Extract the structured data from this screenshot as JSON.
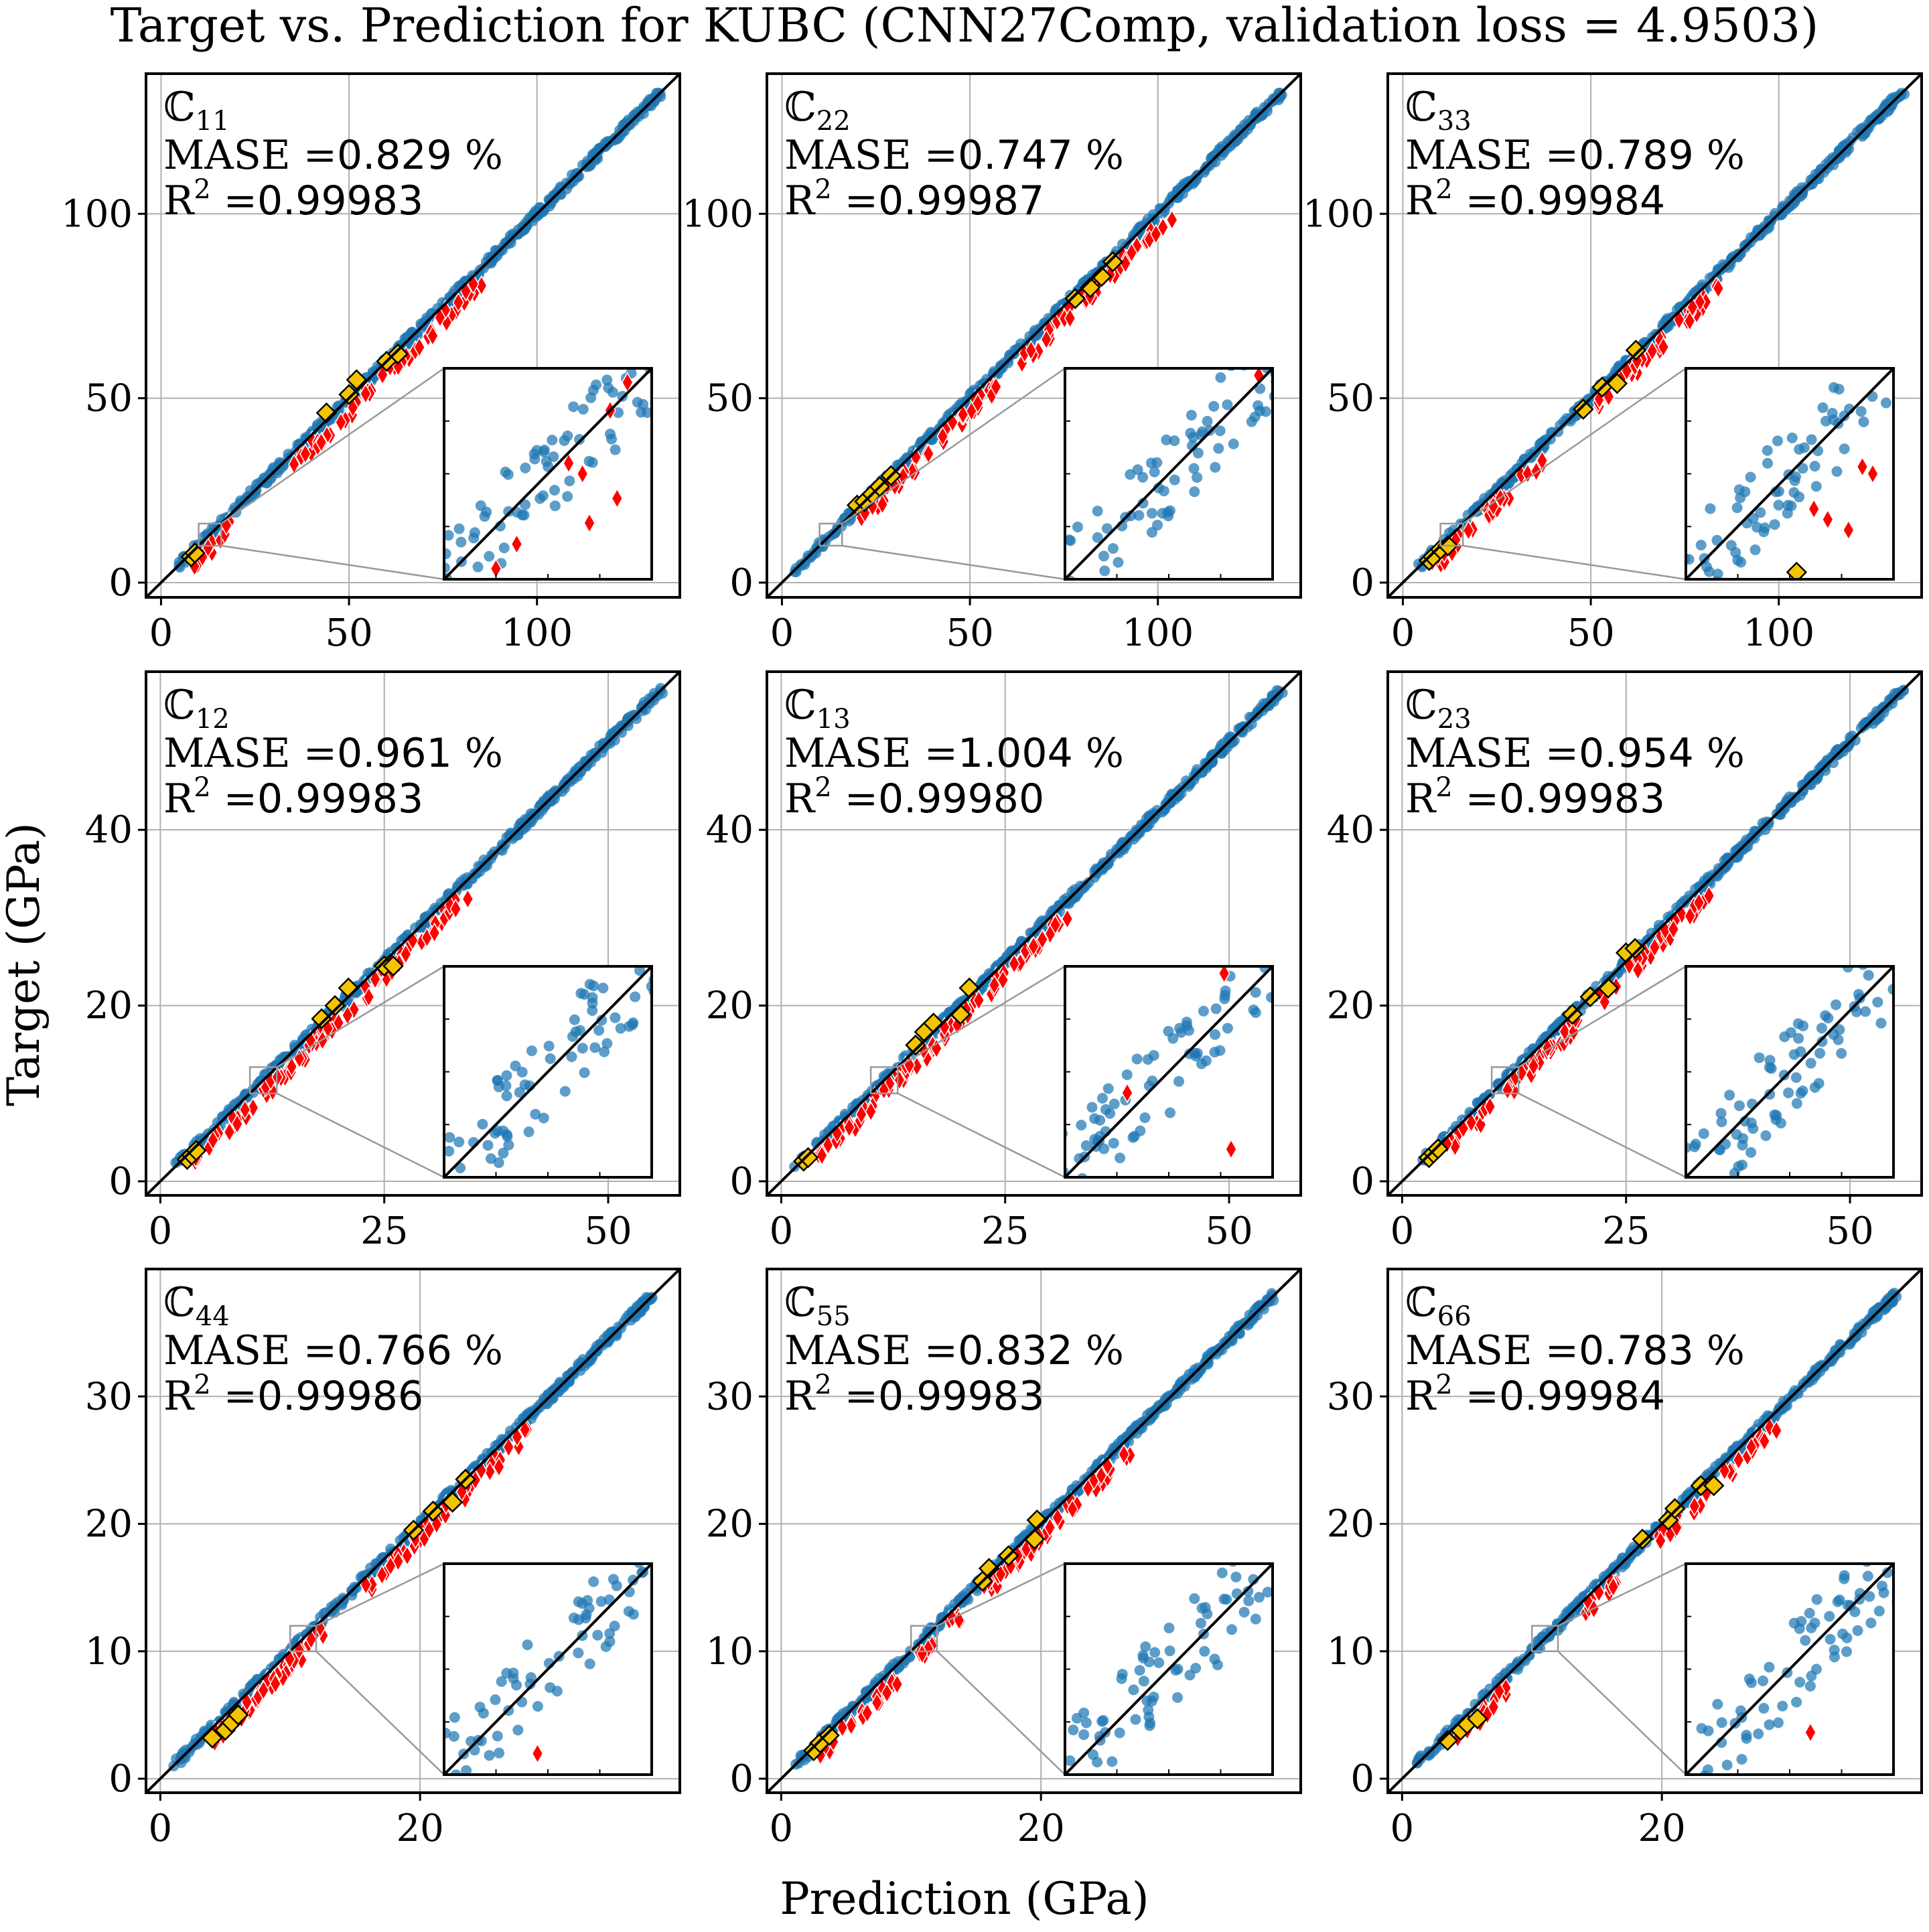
{
  "figure": {
    "title": "Target vs. Prediction for KUBC (CNN27Comp, validation loss = 4.9503)",
    "xlabel": "Prediction (GPa)",
    "ylabel": "Target (GPa)",
    "colors": {
      "scatter": "#1f77b4",
      "diamond_red": "#ff0000",
      "diamond_gold": "#f5c400",
      "diag": "#000000",
      "grid": "#b0b0b0"
    }
  },
  "chart_data": [
    {
      "type": "scatter",
      "component_label": "ℂ",
      "component_sub": "11",
      "mase_label": "MASE =",
      "mase_value": "0.829",
      "mase_unit": "%",
      "r2_label": "R",
      "r2_sup": "2",
      "r2_eq": " =",
      "r2_value": "0.99983",
      "xlim": [
        -4,
        138
      ],
      "ylim": [
        -4,
        138
      ],
      "xticks": [
        0,
        50,
        100
      ],
      "yticks": [
        0,
        50,
        100
      ],
      "range": [
        3,
        133
      ],
      "red_ranges": [
        [
          5,
          17
        ],
        [
          33,
          50
        ],
        [
          52,
          66
        ],
        [
          65,
          82
        ]
      ],
      "gold_points": [
        [
          8,
          7
        ],
        [
          9,
          8
        ],
        [
          44,
          46
        ],
        [
          50,
          51
        ],
        [
          52,
          55
        ],
        [
          60,
          60
        ],
        [
          63,
          62
        ]
      ],
      "zoom_box": [
        10,
        16,
        10,
        16
      ],
      "inset_red": [
        [
          13.6,
          13.3
        ],
        [
          14.0,
          13.0
        ],
        [
          15.0,
          12.3
        ],
        [
          14.2,
          11.6
        ],
        [
          14.8,
          14.8
        ],
        [
          15.3,
          15.6
        ],
        [
          11.5,
          10.3
        ],
        [
          12.1,
          11.0
        ]
      ],
      "inset_gold": []
    },
    {
      "type": "scatter",
      "component_label": "ℂ",
      "component_sub": "22",
      "mase_label": "MASE =",
      "mase_value": "0.747",
      "mase_unit": "%",
      "r2_label": "R",
      "r2_sup": "2",
      "r2_eq": " =",
      "r2_value": "0.99987",
      "xlim": [
        -4,
        138
      ],
      "ylim": [
        -4,
        138
      ],
      "xticks": [
        0,
        50,
        100
      ],
      "yticks": [
        0,
        50,
        100
      ],
      "range": [
        3,
        133
      ],
      "red_ranges": [
        [
          18,
          35
        ],
        [
          35,
          55
        ],
        [
          60,
          100
        ]
      ],
      "gold_points": [
        [
          20,
          21
        ],
        [
          22,
          22
        ],
        [
          24,
          24
        ],
        [
          26,
          26
        ],
        [
          29,
          29
        ],
        [
          78,
          77
        ],
        [
          82,
          80
        ],
        [
          85,
          83
        ],
        [
          88,
          87
        ]
      ],
      "zoom_box": [
        10,
        16,
        10,
        16
      ],
      "inset_red": [
        [
          15.6,
          15.8
        ]
      ],
      "inset_gold": []
    },
    {
      "type": "scatter",
      "component_label": "ℂ",
      "component_sub": "33",
      "mase_label": "MASE =",
      "mase_value": "0.789",
      "mase_unit": "%",
      "r2_label": "R",
      "r2_sup": "2",
      "r2_eq": " =",
      "r2_value": "0.99984",
      "xlim": [
        -4,
        138
      ],
      "ylim": [
        -4,
        138
      ],
      "xticks": [
        0,
        50,
        100
      ],
      "yticks": [
        0,
        50,
        100
      ],
      "range": [
        3,
        133
      ],
      "red_ranges": [
        [
          6,
          17
        ],
        [
          18,
          35
        ],
        [
          48,
          62
        ],
        [
          58,
          82
        ]
      ],
      "gold_points": [
        [
          7,
          6
        ],
        [
          8,
          7
        ],
        [
          10,
          9
        ],
        [
          12,
          10
        ],
        [
          48,
          47
        ],
        [
          53,
          53
        ],
        [
          57,
          54
        ],
        [
          62,
          63
        ]
      ],
      "zoom_box": [
        10,
        16,
        10,
        16
      ],
      "inset_red": [
        [
          14.1,
          11.7
        ],
        [
          14.7,
          11.4
        ],
        [
          13.7,
          12.0
        ],
        [
          15.1,
          13.2
        ],
        [
          15.4,
          13.0
        ]
      ],
      "inset_gold": [
        [
          13.2,
          10.2
        ]
      ]
    },
    {
      "type": "scatter",
      "component_label": "ℂ",
      "component_sub": "12",
      "mase_label": "MASE =",
      "mase_value": "0.961",
      "mase_unit": "%",
      "r2_label": "R",
      "r2_sup": "2",
      "r2_eq": " =",
      "r2_value": "0.99983",
      "xlim": [
        -1.6,
        58
      ],
      "ylim": [
        -1.6,
        58
      ],
      "xticks": [
        0,
        25,
        50
      ],
      "yticks": [
        0,
        20,
        40
      ],
      "range": [
        1.5,
        56
      ],
      "red_ranges": [
        [
          2,
          9
        ],
        [
          10,
          17
        ],
        [
          16,
          33
        ]
      ],
      "gold_points": [
        [
          3,
          2.5
        ],
        [
          3.5,
          3
        ],
        [
          4,
          3.5
        ],
        [
          18,
          18.5
        ],
        [
          19.5,
          20
        ],
        [
          21,
          22
        ],
        [
          25,
          24.5
        ],
        [
          26,
          24.5
        ]
      ],
      "zoom_box": [
        10,
        13,
        10,
        13
      ],
      "inset_red": [],
      "inset_gold": []
    },
    {
      "type": "scatter",
      "component_label": "ℂ",
      "component_sub": "13",
      "mase_label": "MASE =",
      "mase_value": "1.004",
      "mase_unit": "%",
      "r2_label": "R",
      "r2_sup": "2",
      "r2_eq": " =",
      "r2_value": "0.99980",
      "xlim": [
        -1.6,
        58
      ],
      "ylim": [
        -1.6,
        58
      ],
      "xticks": [
        0,
        25,
        50
      ],
      "yticks": [
        0,
        20,
        40
      ],
      "range": [
        1.5,
        56
      ],
      "red_ranges": [
        [
          3,
          10
        ],
        [
          10,
          17
        ],
        [
          17,
          31
        ]
      ],
      "gold_points": [
        [
          2.5,
          2.3
        ],
        [
          3,
          2.7
        ],
        [
          15,
          15.5
        ],
        [
          16,
          17
        ],
        [
          17,
          18
        ],
        [
          20,
          19
        ],
        [
          21,
          22
        ]
      ],
      "zoom_box": [
        10,
        13,
        10,
        13
      ],
      "inset_red": [
        [
          12.3,
          12.9
        ],
        [
          12.4,
          10.4
        ],
        [
          10.9,
          11.2
        ]
      ],
      "inset_gold": []
    },
    {
      "type": "scatter",
      "component_label": "ℂ",
      "component_sub": "23",
      "mase_label": "MASE =",
      "mase_value": "0.954",
      "mase_unit": "%",
      "r2_label": "R",
      "r2_sup": "2",
      "r2_eq": " =",
      "r2_value": "0.99983",
      "xlim": [
        -1.6,
        58
      ],
      "ylim": [
        -1.6,
        58
      ],
      "xticks": [
        0,
        25,
        50
      ],
      "yticks": [
        0,
        20,
        40
      ],
      "range": [
        1.5,
        56
      ],
      "red_ranges": [
        [
          4,
          9
        ],
        [
          10,
          17
        ],
        [
          15,
          34
        ]
      ],
      "gold_points": [
        [
          3,
          2.7
        ],
        [
          3.5,
          3.2
        ],
        [
          4,
          3.7
        ],
        [
          19,
          19
        ],
        [
          21,
          21
        ],
        [
          23,
          22
        ],
        [
          25,
          26
        ],
        [
          26,
          26.5
        ]
      ],
      "zoom_box": [
        10,
        13,
        10,
        13
      ],
      "inset_red": [],
      "inset_gold": []
    },
    {
      "type": "scatter",
      "component_label": "ℂ",
      "component_sub": "44",
      "mase_label": "MASE =",
      "mase_value": "0.766",
      "mase_unit": "%",
      "r2_label": "R",
      "r2_sup": "2",
      "r2_eq": " =",
      "r2_value": "0.99986",
      "xlim": [
        -1.1,
        40
      ],
      "ylim": [
        -1.1,
        40
      ],
      "xticks": [
        0,
        20
      ],
      "yticks": [
        0,
        10,
        20,
        30
      ],
      "range": [
        1,
        38
      ],
      "red_ranges": [
        [
          3,
          10
        ],
        [
          7,
          12
        ],
        [
          15,
          28
        ]
      ],
      "gold_points": [
        [
          4,
          3.2
        ],
        [
          5,
          3.8
        ],
        [
          5.5,
          4.4
        ],
        [
          6,
          5
        ],
        [
          19.5,
          19.5
        ],
        [
          21,
          21
        ],
        [
          22.5,
          21.7
        ],
        [
          23.5,
          23.5
        ]
      ],
      "zoom_box": [
        10,
        12,
        10,
        12
      ],
      "inset_red": [
        [
          10.9,
          10.2
        ]
      ],
      "inset_gold": []
    },
    {
      "type": "scatter",
      "component_label": "ℂ",
      "component_sub": "55",
      "mase_label": "MASE =",
      "mase_value": "0.832",
      "mase_unit": "%",
      "r2_label": "R",
      "r2_sup": "2",
      "r2_eq": " =",
      "r2_value": "0.99983",
      "xlim": [
        -1.1,
        40
      ],
      "ylim": [
        -1.1,
        40
      ],
      "xticks": [
        0,
        20
      ],
      "yticks": [
        0,
        10,
        20,
        30
      ],
      "range": [
        1,
        38
      ],
      "red_ranges": [
        [
          2,
          8
        ],
        [
          10,
          13
        ],
        [
          15,
          26
        ]
      ],
      "gold_points": [
        [
          2.5,
          2.2
        ],
        [
          3,
          2.8
        ],
        [
          3.7,
          3.4
        ],
        [
          15.5,
          15.5
        ],
        [
          16,
          16.5
        ],
        [
          17.5,
          17.5
        ],
        [
          19.5,
          18.8
        ],
        [
          19.7,
          20.3
        ]
      ],
      "zoom_box": [
        10,
        12,
        10,
        12
      ],
      "inset_red": [],
      "inset_gold": []
    },
    {
      "type": "scatter",
      "component_label": "ℂ",
      "component_sub": "66",
      "mase_label": "MASE =",
      "mase_value": "0.783",
      "mase_unit": "%",
      "r2_label": "R",
      "r2_sup": "2",
      "r2_eq": " =",
      "r2_value": "0.99984",
      "xlim": [
        -1.1,
        40
      ],
      "ylim": [
        -1.1,
        40
      ],
      "xticks": [
        0,
        20
      ],
      "yticks": [
        0,
        10,
        20,
        30
      ],
      "range": [
        1,
        38
      ],
      "red_ranges": [
        [
          3,
          8
        ],
        [
          13,
          16
        ],
        [
          19,
          28
        ]
      ],
      "gold_points": [
        [
          3.5,
          3
        ],
        [
          4.5,
          3.8
        ],
        [
          5,
          4.3
        ],
        [
          5.8,
          4.7
        ],
        [
          18.5,
          18.8
        ],
        [
          20.5,
          20.3
        ],
        [
          21,
          21.2
        ],
        [
          23,
          23
        ],
        [
          24,
          23
        ]
      ],
      "zoom_box": [
        10,
        12,
        10,
        12
      ],
      "inset_red": [
        [
          11.2,
          10.4
        ]
      ],
      "inset_gold": []
    }
  ]
}
